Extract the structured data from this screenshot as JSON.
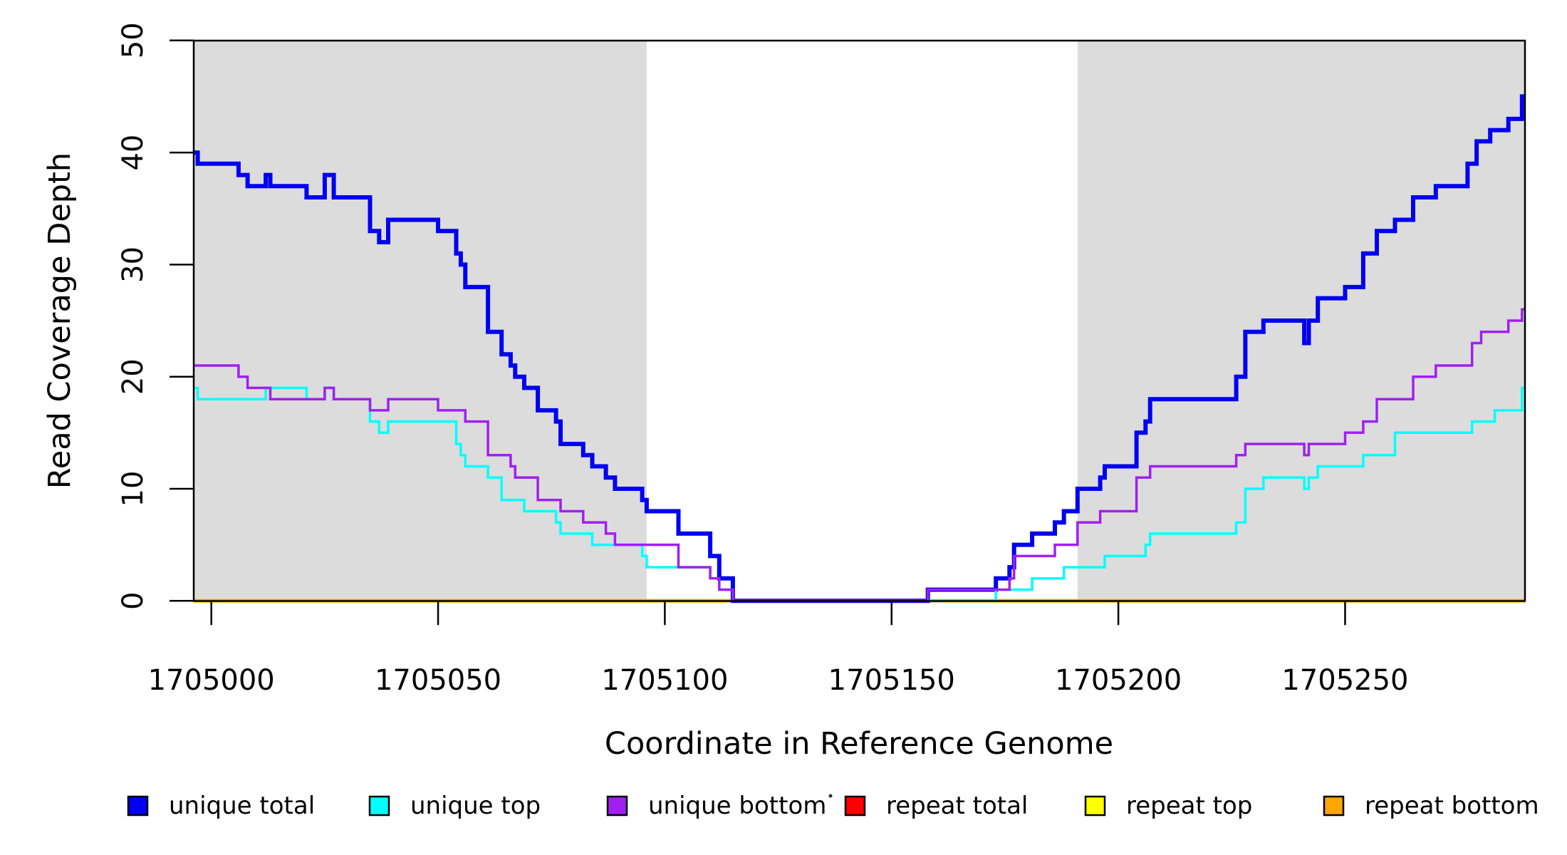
{
  "chart_data": {
    "type": "line",
    "subtype": "step",
    "title": "",
    "xlabel": "Coordinate in Reference Genome",
    "ylabel": "Read Coverage Depth",
    "x_axis": {
      "min": 1704996,
      "max": 1705290,
      "ticks": [
        1705000,
        1705050,
        1705100,
        1705150,
        1705200,
        1705250
      ],
      "tick_labels": [
        "1705000",
        "1705050",
        "1705100",
        "1705150",
        "1705200",
        "1705250"
      ]
    },
    "y_axis": {
      "min": 0,
      "max": 50,
      "ticks": [
        0,
        10,
        20,
        30,
        40,
        50
      ],
      "tick_labels": [
        "0",
        "10",
        "20",
        "30",
        "40",
        "50"
      ]
    },
    "grid": false,
    "plot_background": "#ffffff",
    "shaded_regions": [
      {
        "name": "left-gray-band",
        "x_start": 1704996,
        "x_end": 1705096,
        "color": "#DCDCDC"
      },
      {
        "name": "right-gray-band",
        "x_start": 1705191,
        "x_end": 1705290,
        "color": "#DCDCDC"
      }
    ],
    "series": [
      {
        "name": "repeat total",
        "color": "#FF0000",
        "width": 3,
        "points": [
          [
            1704996,
            0
          ]
        ]
      },
      {
        "name": "repeat top",
        "color": "#FFFF00",
        "width": 3,
        "points": [
          [
            1704996,
            0
          ]
        ]
      },
      {
        "name": "repeat bottom",
        "color": "#FFA500",
        "width": 5,
        "points": [
          [
            1704996,
            0
          ]
        ]
      },
      {
        "name": "unique total",
        "color": "#0000F0",
        "width": 6,
        "points": [
          [
            1704996,
            40
          ],
          [
            1704997,
            39
          ],
          [
            1705006,
            38
          ],
          [
            1705008,
            37
          ],
          [
            1705012,
            38
          ],
          [
            1705013,
            37
          ],
          [
            1705021,
            36
          ],
          [
            1705025,
            38
          ],
          [
            1705027,
            36
          ],
          [
            1705035,
            33
          ],
          [
            1705037,
            32
          ],
          [
            1705039,
            34
          ],
          [
            1705050,
            33
          ],
          [
            1705054,
            31
          ],
          [
            1705055,
            30
          ],
          [
            1705056,
            28
          ],
          [
            1705061,
            24
          ],
          [
            1705064,
            22
          ],
          [
            1705066,
            21
          ],
          [
            1705067,
            20
          ],
          [
            1705069,
            19
          ],
          [
            1705072,
            17
          ],
          [
            1705076,
            16
          ],
          [
            1705077,
            14
          ],
          [
            1705082,
            13
          ],
          [
            1705084,
            12
          ],
          [
            1705087,
            11
          ],
          [
            1705089,
            10
          ],
          [
            1705095,
            9
          ],
          [
            1705096,
            8
          ],
          [
            1705103,
            6
          ],
          [
            1705110,
            4
          ],
          [
            1705112,
            2
          ],
          [
            1705115,
            0
          ],
          [
            1705158,
            1
          ],
          [
            1705173,
            2
          ],
          [
            1705176,
            3
          ],
          [
            1705177,
            5
          ],
          [
            1705181,
            6
          ],
          [
            1705186,
            7
          ],
          [
            1705188,
            8
          ],
          [
            1705191,
            10
          ],
          [
            1705196,
            11
          ],
          [
            1705197,
            12
          ],
          [
            1705204,
            15
          ],
          [
            1705206,
            16
          ],
          [
            1705207,
            18
          ],
          [
            1705226,
            20
          ],
          [
            1705228,
            24
          ],
          [
            1705232,
            25
          ],
          [
            1705241,
            23
          ],
          [
            1705242,
            25
          ],
          [
            1705244,
            27
          ],
          [
            1705250,
            28
          ],
          [
            1705254,
            31
          ],
          [
            1705257,
            33
          ],
          [
            1705261,
            34
          ],
          [
            1705265,
            36
          ],
          [
            1705270,
            37
          ],
          [
            1705277,
            39
          ],
          [
            1705279,
            41
          ],
          [
            1705282,
            42
          ],
          [
            1705286,
            43
          ],
          [
            1705289,
            45
          ]
        ]
      },
      {
        "name": "unique top",
        "color": "#00FFFF",
        "width": 3.5,
        "points": [
          [
            1704996,
            19
          ],
          [
            1704997,
            18
          ],
          [
            1705012,
            19
          ],
          [
            1705021,
            18
          ],
          [
            1705025,
            19
          ],
          [
            1705027,
            18
          ],
          [
            1705035,
            16
          ],
          [
            1705037,
            15
          ],
          [
            1705039,
            16
          ],
          [
            1705054,
            14
          ],
          [
            1705055,
            13
          ],
          [
            1705056,
            12
          ],
          [
            1705061,
            11
          ],
          [
            1705064,
            9
          ],
          [
            1705069,
            8
          ],
          [
            1705076,
            7
          ],
          [
            1705077,
            6
          ],
          [
            1705084,
            5
          ],
          [
            1705095,
            4
          ],
          [
            1705096,
            3
          ],
          [
            1705110,
            2
          ],
          [
            1705112,
            1
          ],
          [
            1705115,
            0
          ],
          [
            1705173,
            1
          ],
          [
            1705181,
            2
          ],
          [
            1705188,
            3
          ],
          [
            1705197,
            4
          ],
          [
            1705206,
            5
          ],
          [
            1705207,
            6
          ],
          [
            1705226,
            7
          ],
          [
            1705228,
            10
          ],
          [
            1705232,
            11
          ],
          [
            1705241,
            10
          ],
          [
            1705242,
            11
          ],
          [
            1705244,
            12
          ],
          [
            1705254,
            13
          ],
          [
            1705261,
            15
          ],
          [
            1705278,
            16
          ],
          [
            1705283,
            17
          ],
          [
            1705289,
            19
          ]
        ]
      },
      {
        "name": "unique bottom",
        "color": "#A020F0",
        "width": 3.5,
        "points": [
          [
            1704996,
            21
          ],
          [
            1705006,
            20
          ],
          [
            1705008,
            19
          ],
          [
            1705013,
            18
          ],
          [
            1705025,
            19
          ],
          [
            1705027,
            18
          ],
          [
            1705035,
            17
          ],
          [
            1705039,
            18
          ],
          [
            1705050,
            17
          ],
          [
            1705056,
            16
          ],
          [
            1705061,
            13
          ],
          [
            1705066,
            12
          ],
          [
            1705067,
            11
          ],
          [
            1705072,
            9
          ],
          [
            1705077,
            8
          ],
          [
            1705082,
            7
          ],
          [
            1705087,
            6
          ],
          [
            1705089,
            5
          ],
          [
            1705103,
            3
          ],
          [
            1705110,
            2
          ],
          [
            1705112,
            1
          ],
          [
            1705115,
            0
          ],
          [
            1705158,
            1
          ],
          [
            1705176,
            2
          ],
          [
            1705177,
            4
          ],
          [
            1705186,
            5
          ],
          [
            1705191,
            7
          ],
          [
            1705196,
            8
          ],
          [
            1705204,
            11
          ],
          [
            1705207,
            12
          ],
          [
            1705226,
            13
          ],
          [
            1705228,
            14
          ],
          [
            1705241,
            13
          ],
          [
            1705242,
            14
          ],
          [
            1705250,
            15
          ],
          [
            1705254,
            16
          ],
          [
            1705257,
            18
          ],
          [
            1705265,
            20
          ],
          [
            1705270,
            21
          ],
          [
            1705278,
            23
          ],
          [
            1705280,
            24
          ],
          [
            1705286,
            25
          ],
          [
            1705289,
            26
          ]
        ]
      }
    ],
    "legend": {
      "position": "bottom",
      "entries": [
        {
          "label": "unique total",
          "color": "#0000F0"
        },
        {
          "label": "unique top",
          "color": "#00FFFF"
        },
        {
          "label": "unique bottom",
          "color": "#A020F0"
        },
        {
          "label": "repeat total",
          "color": "#FF0000"
        },
        {
          "label": "repeat top",
          "color": "#FFFF00"
        },
        {
          "label": "repeat bottom",
          "color": "#FFA500"
        }
      ]
    }
  }
}
